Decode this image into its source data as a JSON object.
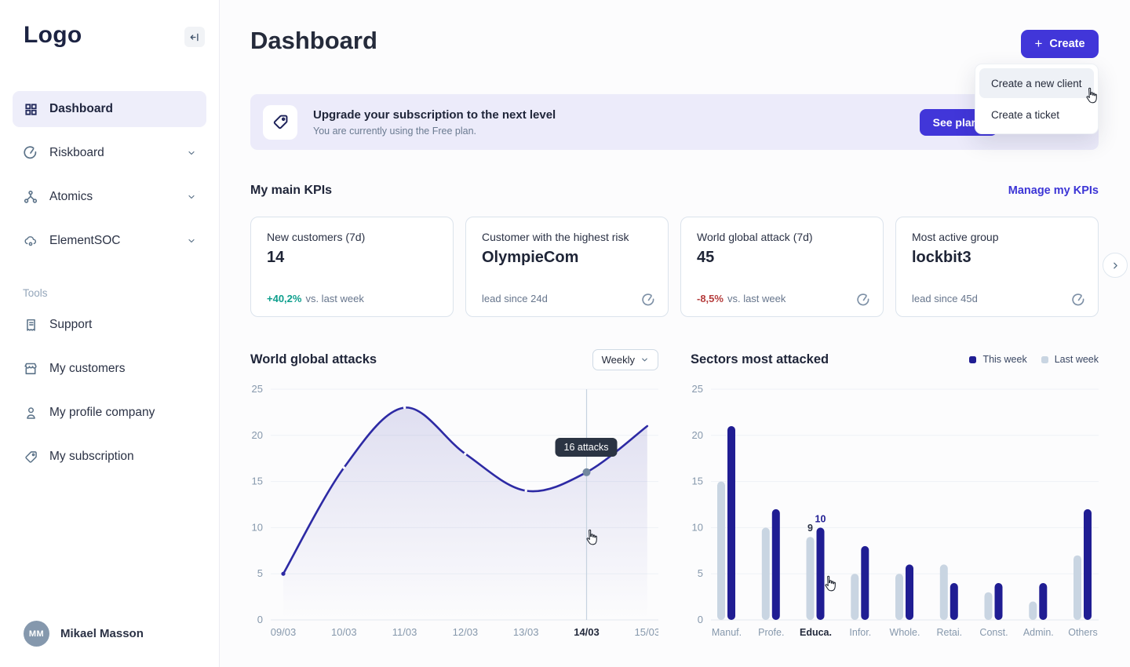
{
  "sidebar": {
    "logo": "Logo",
    "nav": [
      {
        "label": "Dashboard",
        "icon": "grid-icon",
        "active": true,
        "expandable": false
      },
      {
        "label": "Riskboard",
        "icon": "gauge-icon",
        "active": false,
        "expandable": true
      },
      {
        "label": "Atomics",
        "icon": "molecule-icon",
        "active": false,
        "expandable": true
      },
      {
        "label": "ElementSOC",
        "icon": "cloud-icon",
        "active": false,
        "expandable": true
      }
    ],
    "tools_label": "Tools",
    "tools": [
      {
        "label": "Support",
        "icon": "receipt-icon"
      },
      {
        "label": "My customers",
        "icon": "store-icon"
      },
      {
        "label": "My profile company",
        "icon": "person-icon"
      },
      {
        "label": "My subscription",
        "icon": "tag-icon"
      }
    ],
    "user": {
      "initials": "MM",
      "name": "Mikael Masson"
    }
  },
  "header": {
    "title": "Dashboard",
    "create_label": "Create"
  },
  "create_menu": {
    "items": [
      "Create a new client",
      "Create a ticket"
    ],
    "highlighted_item": "Create a new client"
  },
  "banner": {
    "icon": "tag-icon",
    "title": "Upgrade your subscription to the next level",
    "subtitle": "You are currently using the Free plan.",
    "cta": "See plans"
  },
  "kpis": {
    "heading": "My main KPIs",
    "manage_link": "Manage my KPIs",
    "cards": [
      {
        "label": "New customers (7d)",
        "value": "14",
        "delta": "+40,2%",
        "delta_color": "#0e9f8d",
        "suffix": "vs. last week",
        "icon": null
      },
      {
        "label": "Customer with the highest risk",
        "value": "OlympieCom",
        "note": "lead since 24d",
        "icon": "gauge-icon"
      },
      {
        "label": "World global attack (7d)",
        "value": "45",
        "delta": "-8,5%",
        "delta_color": "#b53c3c",
        "suffix": "vs. last week",
        "icon": "gauge-icon"
      },
      {
        "label": "Most active group",
        "value": "lockbit3",
        "note": "lead since 45d",
        "icon": "gauge-icon"
      }
    ]
  },
  "colors": {
    "accent": "#4136d9",
    "banner_bg": "#ecebfa",
    "positive": "#0e9f8d",
    "negative": "#b53c3c"
  },
  "chart_data": [
    {
      "type": "area",
      "title": "World global attacks",
      "period_selector": "Weekly",
      "x": [
        "09/03",
        "10/03",
        "11/03",
        "12/03",
        "13/03",
        "14/03",
        "15/03"
      ],
      "values": [
        5,
        16.5,
        23,
        18,
        14,
        16,
        21
      ],
      "ylim": [
        0,
        25
      ],
      "yticks": [
        0,
        5,
        10,
        15,
        20,
        25
      ],
      "grid": true,
      "line_color": "#2d2aa4",
      "tooltip": {
        "x": "14/03",
        "value": 16,
        "label": "16 attacks"
      }
    },
    {
      "type": "bar",
      "title": "Sectors most attacked",
      "categories": [
        "Manuf.",
        "Profe.",
        "Educa.",
        "Infor.",
        "Whole.",
        "Retai.",
        "Const.",
        "Admin.",
        "Others"
      ],
      "series": [
        {
          "name": "This week",
          "color": "#201d93",
          "values": [
            21,
            12,
            10,
            8,
            6,
            4,
            4,
            4,
            12
          ]
        },
        {
          "name": "Last week",
          "color": "#c9d5e2",
          "values": [
            15,
            10,
            9,
            5,
            5,
            6,
            3,
            2,
            7
          ]
        }
      ],
      "ylim": [
        0,
        25
      ],
      "yticks": [
        0,
        5,
        10,
        15,
        20,
        25
      ],
      "grid": true,
      "legend_position": "top-right",
      "highlighted_category": "Educa.",
      "value_labels": {
        "Educa.": {
          "last_week": "9",
          "this_week": "10"
        }
      }
    }
  ]
}
